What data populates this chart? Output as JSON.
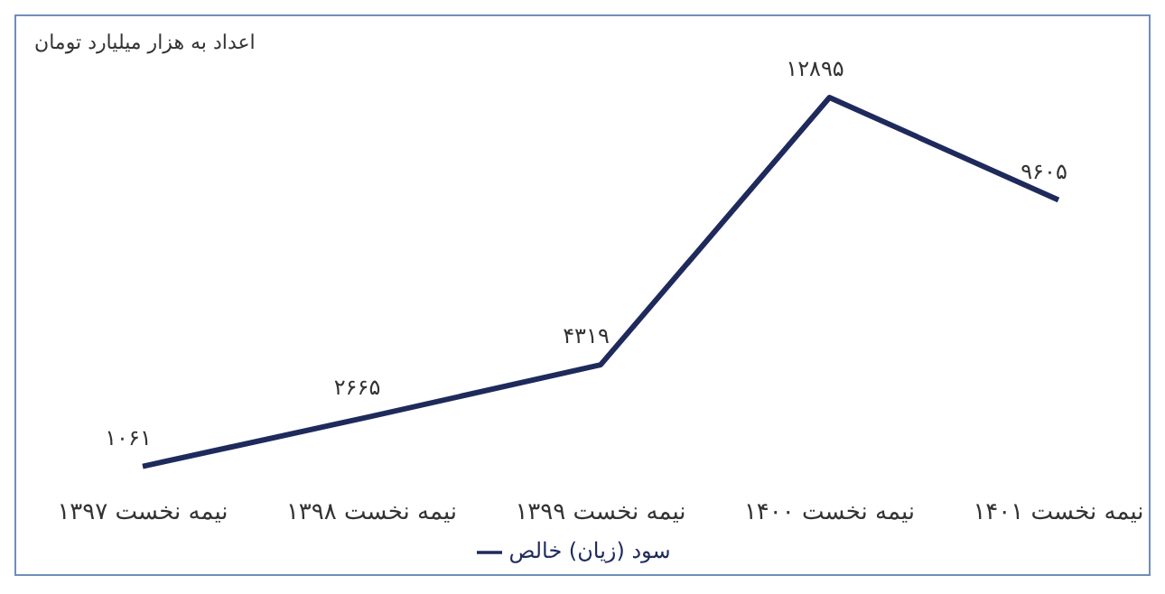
{
  "chart_data": {
    "type": "line",
    "subtitle": "اعداد به هزار میلیارد تومان",
    "categories": [
      "نیمه نخست ۱۳۹۷",
      "نیمه نخست ۱۳۹۸",
      "نیمه نخست ۱۳۹۹",
      "نیمه نخست ۱۴۰۰",
      "نیمه نخست ۱۴۰۱"
    ],
    "series": [
      {
        "name": "سود (زیان) خالص",
        "color": "#1f2a5c",
        "values": [
          1061,
          2665,
          4319,
          12895,
          9605
        ],
        "value_labels": [
          "۱۰۶۱",
          "۲۶۶۵",
          "۴۳۱۹",
          "۱۲۸۹۵",
          "۹۶۰۵"
        ]
      }
    ],
    "legend": "bottom",
    "marker": "none",
    "grid": false
  }
}
